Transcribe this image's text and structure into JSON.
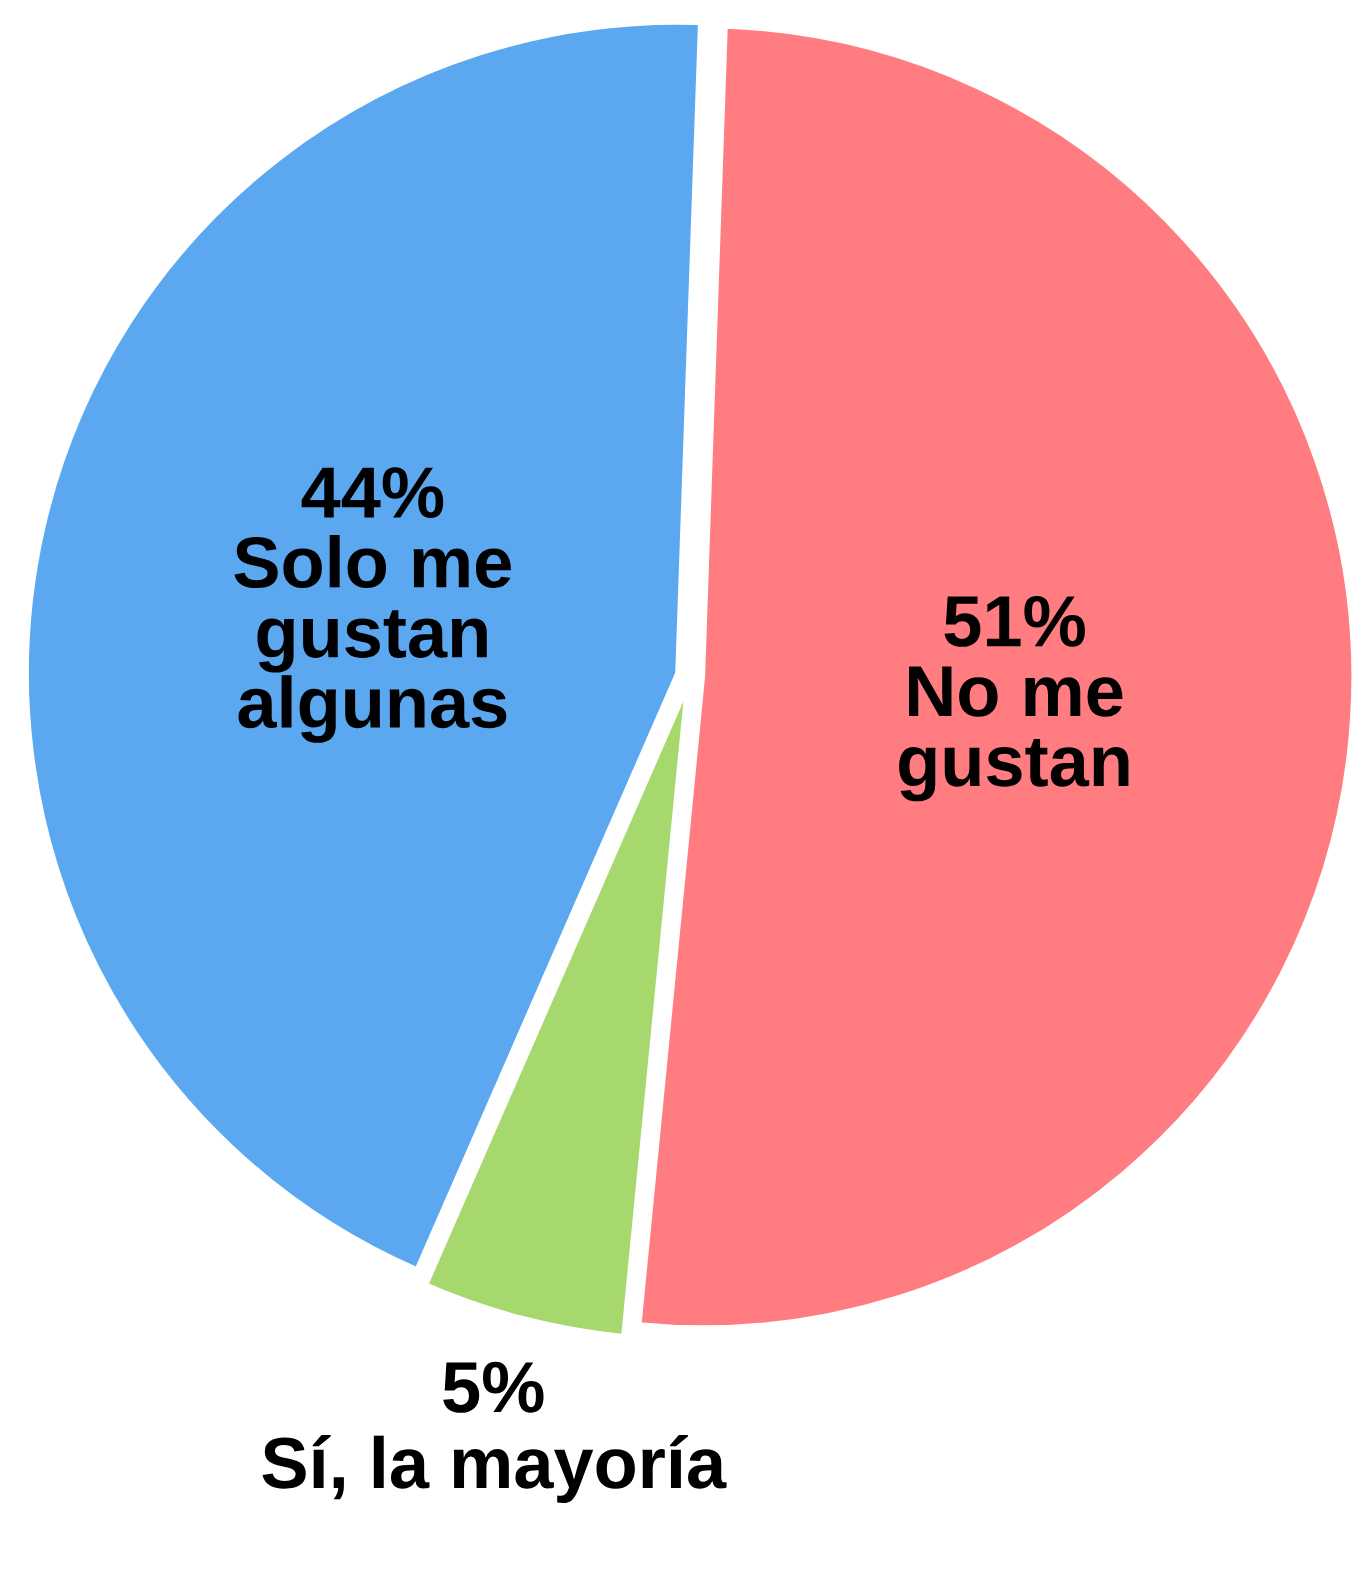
{
  "chart_data": {
    "type": "pie",
    "categories": [
      "No me\ngustan",
      "Sí, la mayoría",
      "Solo me\ngustan\nalgunas"
    ],
    "values": [
      51,
      5,
      44
    ],
    "value_labels": [
      "51%",
      "5%",
      "44%"
    ],
    "colors": [
      "#ff7c80",
      "#a6d86e",
      "#5ba8f0"
    ]
  }
}
